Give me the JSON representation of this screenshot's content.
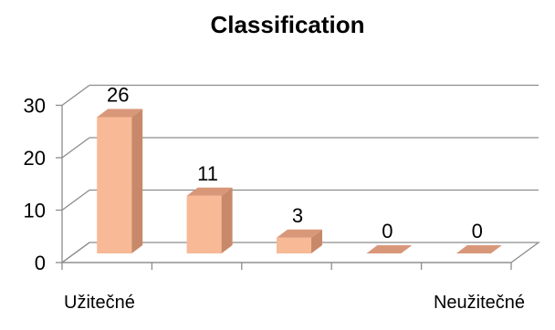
{
  "chart_data": {
    "type": "bar",
    "title": "Classification",
    "categories": [
      "Užitečné",
      "",
      "",
      "",
      "Neužitečné"
    ],
    "values": [
      26,
      11,
      3,
      0,
      0
    ],
    "ylim": [
      0,
      30
    ],
    "yticks": [
      0,
      10,
      20,
      30
    ],
    "data_labels": [
      "26",
      "11",
      "3",
      "0",
      "0"
    ],
    "grid": true,
    "style": "3d-column",
    "colors": {
      "bar_front": "#f8b996",
      "bar_side": "#c8896a",
      "bar_top": "#d9977a",
      "grid": "#8c8c8c",
      "text": "#000000"
    }
  }
}
